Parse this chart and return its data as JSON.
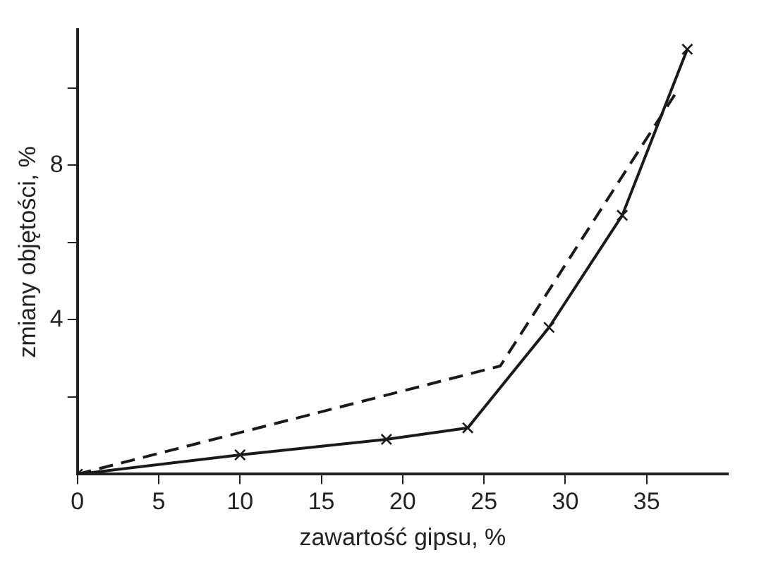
{
  "chart_data": {
    "type": "line",
    "xlabel": "zawartość gipsu, %",
    "ylabel": "zmiany objętości, %",
    "xlim": [
      0,
      40
    ],
    "ylim": [
      0,
      11.5
    ],
    "xticks": [
      0,
      5,
      10,
      15,
      20,
      25,
      30,
      35
    ],
    "yticks": [
      {
        "value": 2,
        "label": null
      },
      4,
      {
        "value": 6,
        "label": null
      },
      8,
      {
        "value": 10,
        "label": null
      }
    ],
    "grid": false,
    "legend": false,
    "series": [
      {
        "color": "#1a1a1a",
        "x": [
          0,
          10,
          19,
          24,
          29,
          33.5,
          37.5
        ],
        "values": [
          0,
          0.5,
          0.9,
          1.2,
          3.8,
          6.7,
          11
        ],
        "marker": "cross",
        "line_style": "solid"
      },
      {
        "color": "#1a1a1a",
        "x": [
          0,
          26,
          37
        ],
        "values": [
          0,
          2.8,
          10
        ],
        "marker": "none",
        "line_style": "dashed"
      }
    ]
  }
}
